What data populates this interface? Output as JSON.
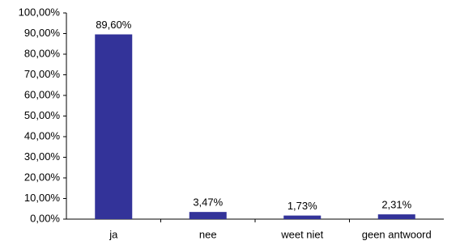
{
  "chart_data": {
    "type": "bar",
    "categories": [
      "ja",
      "nee",
      "weet niet",
      "geen antwoord"
    ],
    "values": [
      89.6,
      3.47,
      1.73,
      2.31
    ],
    "value_labels": [
      "89,60%",
      "3,47%",
      "1,73%",
      "2,31%"
    ],
    "color": "#333399",
    "ylim": [
      0,
      100
    ],
    "yticks": [
      {
        "value": 0,
        "label": "0,00%"
      },
      {
        "value": 10,
        "label": "10,00%"
      },
      {
        "value": 20,
        "label": "20,00%"
      },
      {
        "value": 30,
        "label": "30,00%"
      },
      {
        "value": 40,
        "label": "40,00%"
      },
      {
        "value": 50,
        "label": "50,00%"
      },
      {
        "value": 60,
        "label": "60,00%"
      },
      {
        "value": 70,
        "label": "70,00%"
      },
      {
        "value": 80,
        "label": "80,00%"
      },
      {
        "value": 90,
        "label": "90,00%"
      },
      {
        "value": 100,
        "label": "100,00%"
      }
    ],
    "grid": false
  }
}
